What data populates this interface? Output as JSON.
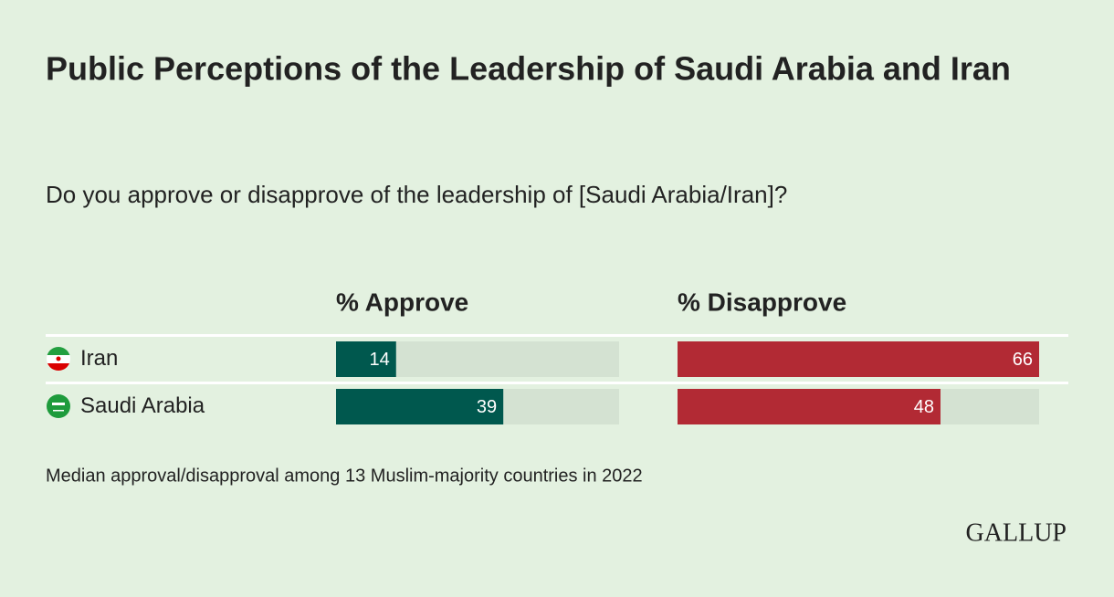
{
  "chart_data": {
    "type": "bar",
    "orientation": "horizontal",
    "title": "Public Perceptions of the Leadership of Saudi Arabia and Iran",
    "subtitle": "Do you approve or disapprove of the leadership of [Saudi Arabia/Iran]?",
    "categories": [
      "Iran",
      "Saudi Arabia"
    ],
    "series": [
      {
        "name": "% Approve",
        "color": "#00584e",
        "values": [
          14,
          39
        ]
      },
      {
        "name": "% Disapprove",
        "color": "#b22a34",
        "values": [
          66,
          48
        ]
      }
    ],
    "xlim": [
      0,
      66
    ],
    "track_color": "#d4e2d2",
    "footnote": "Median approval/disapproval among 13 Muslim-majority countries in 2022",
    "logo": "GALLUP"
  }
}
